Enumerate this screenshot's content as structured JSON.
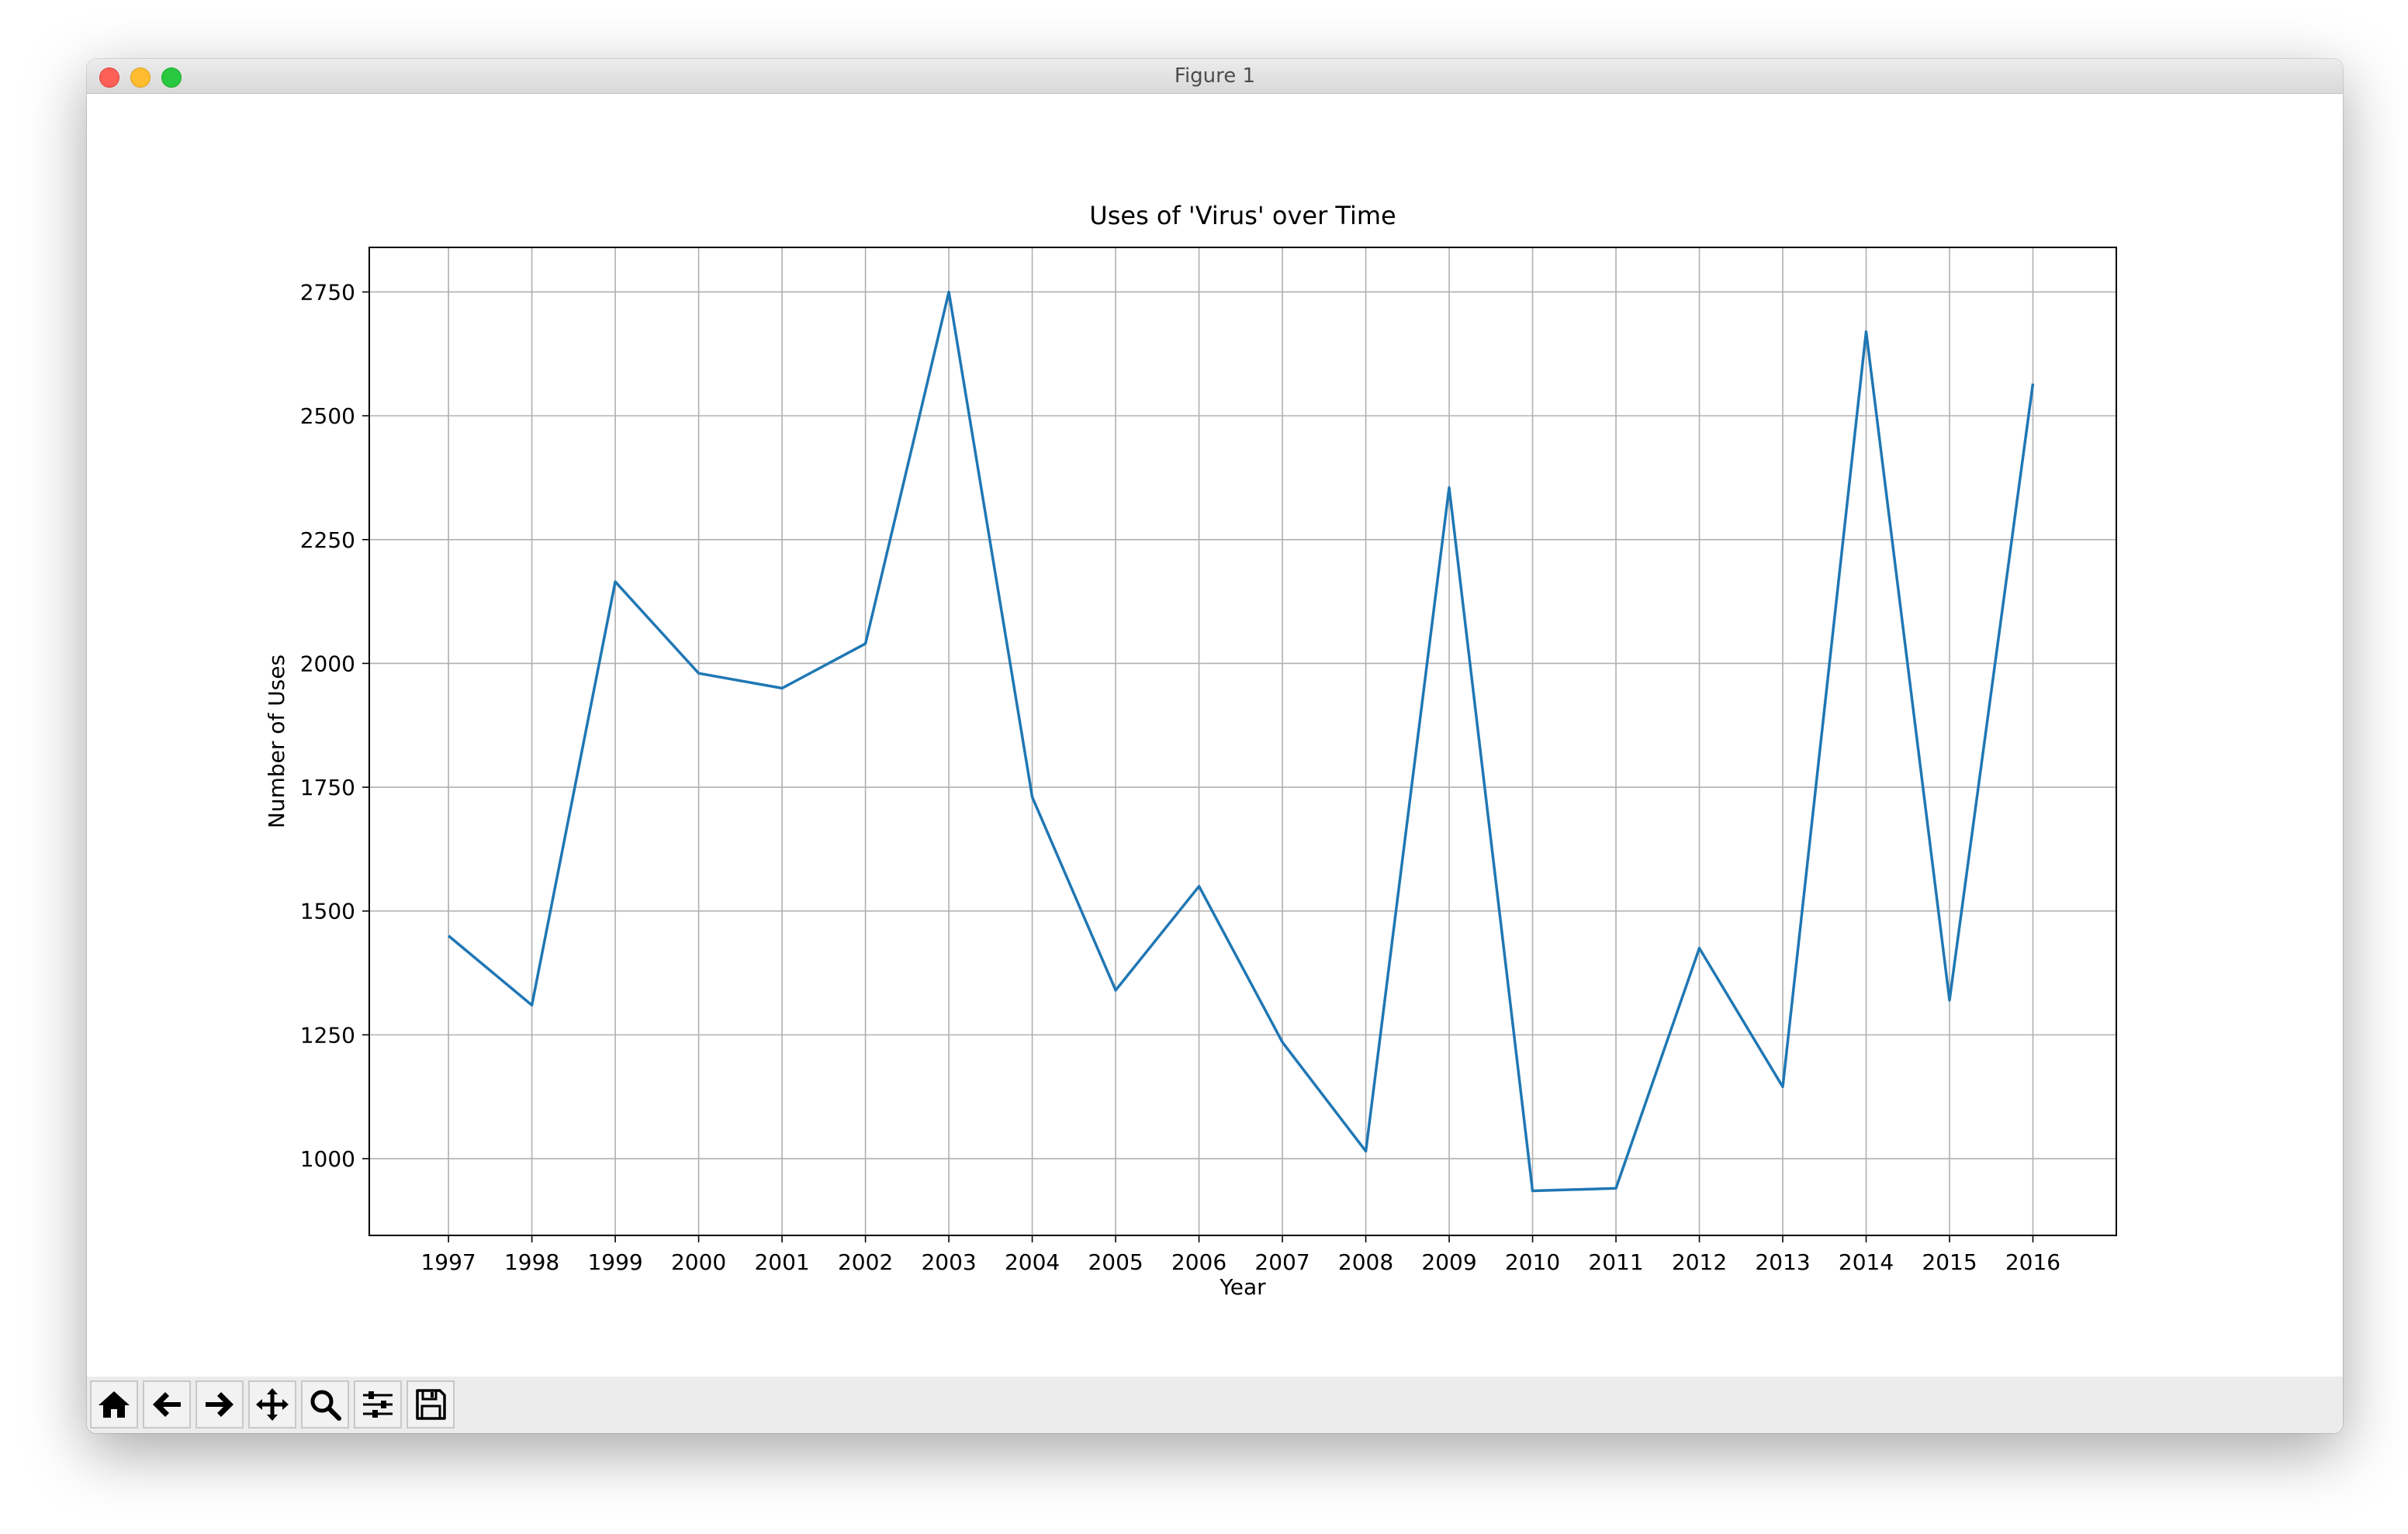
{
  "window": {
    "title": "Figure 1"
  },
  "toolbar": {
    "buttons": [
      {
        "name": "home-button",
        "icon": "home-icon"
      },
      {
        "name": "back-button",
        "icon": "arrow-left-icon"
      },
      {
        "name": "forward-button",
        "icon": "arrow-right-icon"
      },
      {
        "name": "pan-button",
        "icon": "move-icon"
      },
      {
        "name": "zoom-button",
        "icon": "magnifier-icon"
      },
      {
        "name": "configure-subplots-button",
        "icon": "sliders-icon"
      },
      {
        "name": "save-button",
        "icon": "floppy-disk-icon"
      }
    ]
  },
  "chart_data": {
    "type": "line",
    "title": "Uses of 'Virus' over Time",
    "xlabel": "Year",
    "ylabel": "Number of Uses",
    "categories": [
      "1997",
      "1998",
      "1999",
      "2000",
      "2001",
      "2002",
      "2003",
      "2004",
      "2005",
      "2006",
      "2007",
      "2008",
      "2009",
      "2010",
      "2011",
      "2012",
      "2013",
      "2014",
      "2015",
      "2016"
    ],
    "series": [
      {
        "values": [
          1450,
          1310,
          2165,
          1980,
          1950,
          2040,
          2750,
          1730,
          1340,
          1550,
          1235,
          1015,
          2355,
          935,
          940,
          1425,
          1145,
          2670,
          1320,
          2565
        ],
        "color": "#1f77b4"
      }
    ],
    "yticks": [
      1000,
      1250,
      1500,
      1750,
      2000,
      2250,
      2500,
      2750
    ],
    "ylim": [
      845,
      2840
    ],
    "xlim": [
      -0.95,
      20.0
    ],
    "grid": true,
    "legend": "none"
  }
}
